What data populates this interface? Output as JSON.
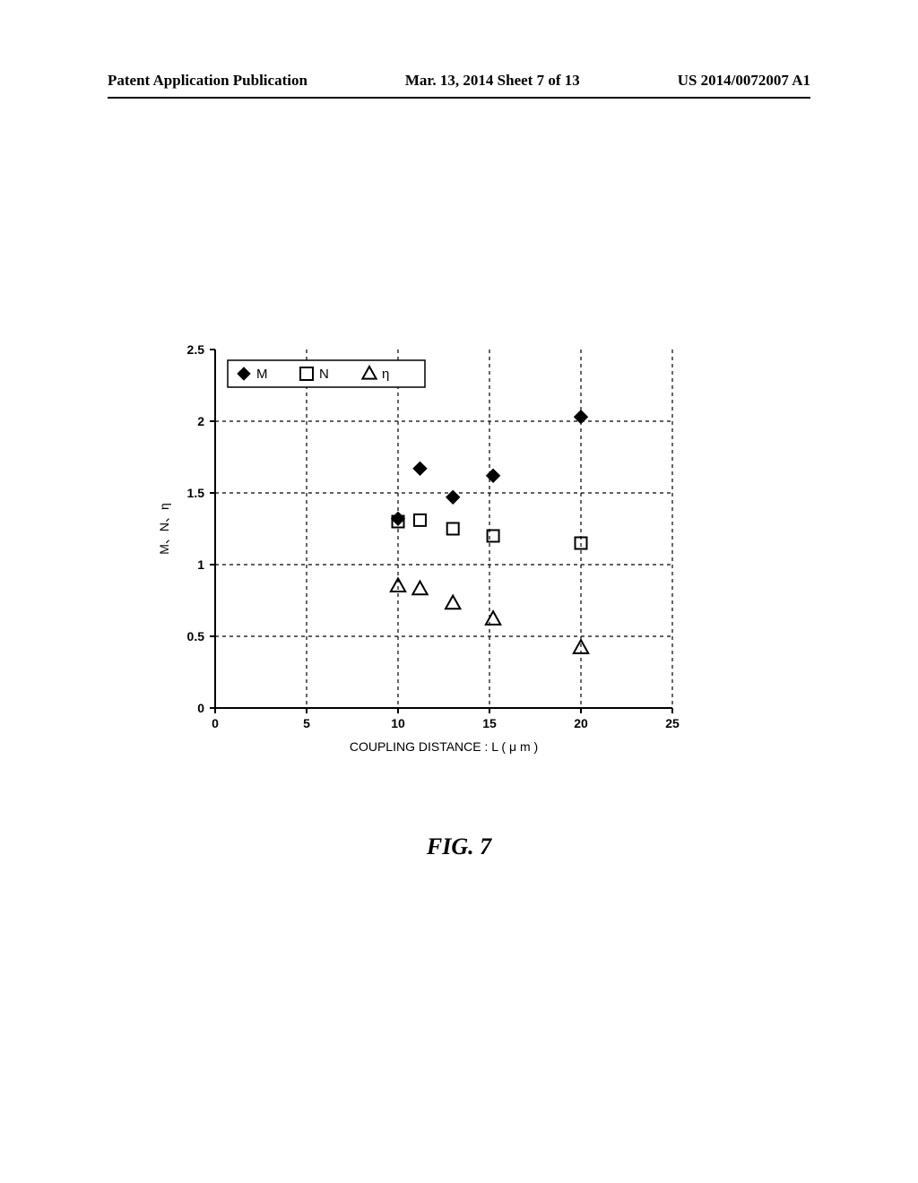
{
  "header": {
    "left": "Patent Application Publication",
    "center": "Mar. 13, 2014  Sheet 7 of 13",
    "right": "US 2014/0072007 A1"
  },
  "figure_caption": "FIG. 7",
  "chart": {
    "type": "scatter",
    "xlabel": "COUPLING DISTANCE : L  ( μ m )",
    "ylabel": "M、N、η",
    "xlim": [
      0,
      25
    ],
    "ylim": [
      0,
      2.5
    ],
    "xtick_step": 5,
    "ytick_step": 0.5,
    "xtick_labels": [
      "0",
      "5",
      "10",
      "15",
      "20",
      "25"
    ],
    "ytick_labels": [
      "0",
      "0.5",
      "1",
      "1.5",
      "2",
      "2.5"
    ],
    "background_color": "#ffffff",
    "grid_color": "#000000",
    "grid_dash": "4,4",
    "axis_color": "#000000",
    "axis_width": 2,
    "tick_fontsize": 14,
    "label_fontsize": 14,
    "legend": {
      "box_stroke": "#000000",
      "box_fill": "#ffffff",
      "box_stroke_width": 1.5,
      "fontsize": 15,
      "items": [
        {
          "marker": "diamond-filled",
          "label": "M"
        },
        {
          "marker": "square-open",
          "label": "N"
        },
        {
          "marker": "triangle-open",
          "label": "η"
        }
      ]
    },
    "series": [
      {
        "name": "M",
        "marker": "diamond-filled",
        "color": "#000000",
        "size": 15,
        "data": [
          {
            "x": 10,
            "y": 1.32
          },
          {
            "x": 11.2,
            "y": 1.67
          },
          {
            "x": 13,
            "y": 1.47
          },
          {
            "x": 15.2,
            "y": 1.62
          },
          {
            "x": 20,
            "y": 2.03
          }
        ]
      },
      {
        "name": "N",
        "marker": "square-open",
        "color": "#000000",
        "size": 13,
        "stroke_width": 2,
        "data": [
          {
            "x": 10,
            "y": 1.3
          },
          {
            "x": 11.2,
            "y": 1.31
          },
          {
            "x": 13,
            "y": 1.25
          },
          {
            "x": 15.2,
            "y": 1.2
          },
          {
            "x": 20,
            "y": 1.15
          }
        ]
      },
      {
        "name": "eta",
        "marker": "triangle-open",
        "color": "#000000",
        "size": 15,
        "stroke_width": 2,
        "data": [
          {
            "x": 10,
            "y": 0.85
          },
          {
            "x": 11.2,
            "y": 0.83
          },
          {
            "x": 13,
            "y": 0.73
          },
          {
            "x": 15.2,
            "y": 0.62
          },
          {
            "x": 20,
            "y": 0.42
          }
        ]
      }
    ]
  }
}
